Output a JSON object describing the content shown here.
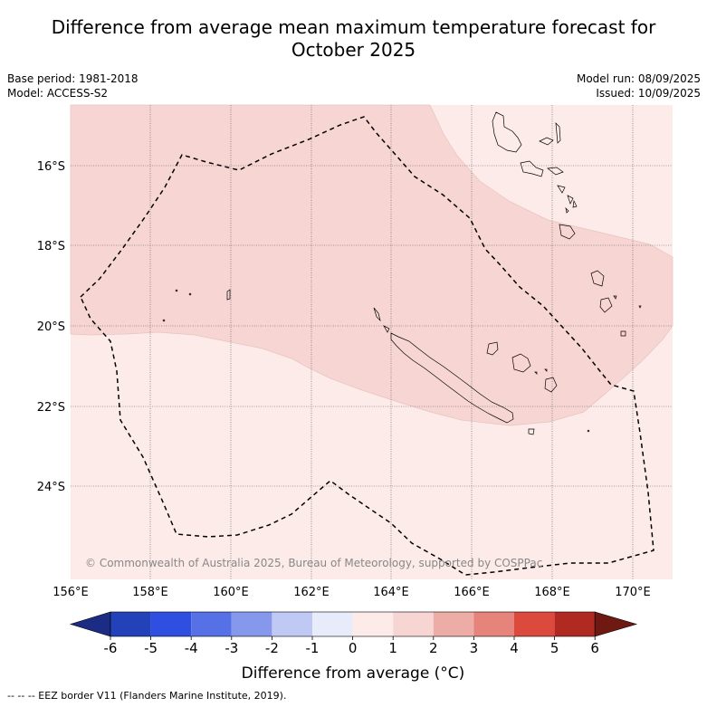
{
  "title_line1": "Difference from average mean maximum temperature forecast for",
  "title_line2": "October 2025",
  "base_period": "Base period: 1981-2018",
  "model": "Model: ACCESS-S2",
  "model_run": "Model run: 08/09/2025",
  "issued": "Issued: 10/09/2025",
  "copyright": "© Commonwealth of Australia 2025, Bureau of Meteorology, supported by COSPPac",
  "lat_labels": [
    "16°S",
    "18°S",
    "20°S",
    "22°S",
    "24°S"
  ],
  "lon_labels": [
    "156°E",
    "158°E",
    "160°E",
    "162°E",
    "164°E",
    "166°E",
    "168°E",
    "170°E"
  ],
  "colorbar": {
    "ticks": [
      "-6",
      "-5",
      "-4",
      "-3",
      "-2",
      "-1",
      "0",
      "1",
      "2",
      "3",
      "4",
      "5",
      "6"
    ],
    "colors": [
      "#1c2c84",
      "#2341b8",
      "#2f4fe0",
      "#5670e6",
      "#8598ec",
      "#c0c8f4",
      "#e8ebfa",
      "#fcebe8",
      "#f6d5d3",
      "#eeaca6",
      "#e6837b",
      "#dc4a3d",
      "#b02a22",
      "#6e1a12"
    ],
    "label": "Difference from average (°C)"
  },
  "legend_footer": "-- -- -- EEZ border V11 (Flanders Marine Institute, 2019).",
  "map_colors": {
    "anomaly_0_1": "#fcebe8",
    "anomaly_1_2": "#f6d5d3",
    "land_outline": "#000000",
    "eez": "#000000"
  }
}
